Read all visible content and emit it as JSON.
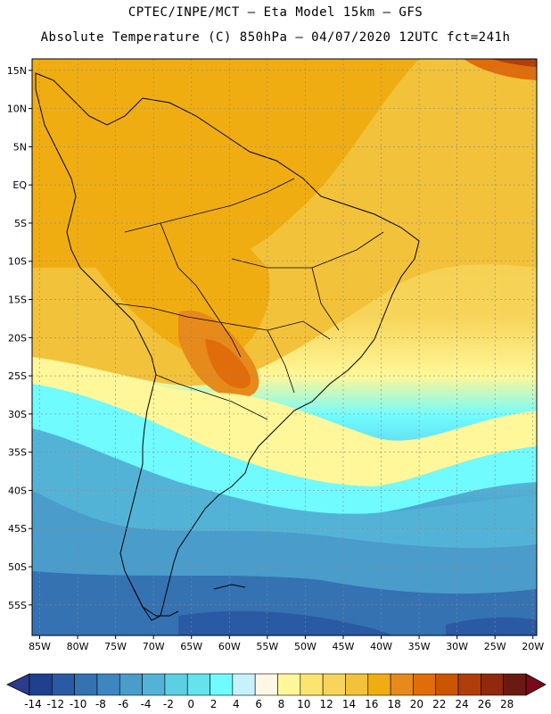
{
  "header": {
    "line1": "CPTEC/INPE/MCT –  Eta Model 15km – GFS",
    "line2": "Absolute Temperature (C) 850hPa – 04/07/2020 12UTC fct=241h"
  },
  "map": {
    "lat_labels": [
      "15N",
      "10N",
      "5N",
      "EQ",
      "5S",
      "10S",
      "15S",
      "20S",
      "25S",
      "30S",
      "35S",
      "40S",
      "45S",
      "50S",
      "55S"
    ],
    "lon_labels": [
      "85W",
      "80W",
      "75W",
      "70W",
      "65W",
      "60W",
      "55W",
      "50W",
      "45W",
      "40W",
      "35W",
      "30W",
      "25W",
      "20W"
    ]
  },
  "colorbar": {
    "labels": [
      "-14",
      "-12",
      "-10",
      "-8",
      "-6",
      "-4",
      "-2",
      "0",
      "2",
      "4",
      "6",
      "8",
      "10",
      "12",
      "14",
      "16",
      "18",
      "20",
      "22",
      "24",
      "26",
      "28"
    ],
    "colors": [
      "#1f3f8f",
      "#2a5aa3",
      "#3472b2",
      "#3d86bf",
      "#4a9ccb",
      "#53b3d7",
      "#5ccfe2",
      "#64e3ec",
      "#6ffbff",
      "#c6f2fb",
      "#fff7e6",
      "#fff799",
      "#fbe56e",
      "#f7d55a",
      "#f2c23a",
      "#f0ad12",
      "#e68a1c",
      "#e06d0a",
      "#cc5500",
      "#b03e0a",
      "#8f2a0e",
      "#6b1a12"
    ],
    "under_color": "#2b3c8c",
    "over_color": "#7a0a1a"
  }
}
